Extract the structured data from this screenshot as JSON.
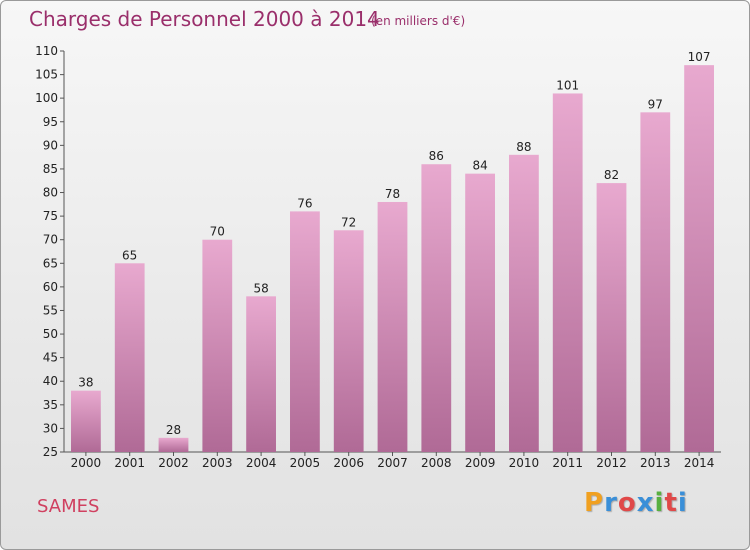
{
  "header": {
    "title": "Charges de Personnel 2000 à 2014",
    "subtitle": "(en milliers d'€)"
  },
  "commune": "SAMES",
  "logo": {
    "letters": [
      "P",
      "r",
      "o",
      "x",
      "i",
      "t",
      "i"
    ],
    "colors": [
      "#f0a020",
      "#3a8fd8",
      "#e04848",
      "#3a8fd8",
      "#58b040",
      "#e04848",
      "#3a8fd8"
    ]
  },
  "chart_data": {
    "type": "bar",
    "title": "Charges de Personnel 2000 à 2014",
    "subtitle": "(en milliers d'€)",
    "categories": [
      "2000",
      "2001",
      "2002",
      "2003",
      "2004",
      "2005",
      "2006",
      "2007",
      "2008",
      "2009",
      "2010",
      "2011",
      "2012",
      "2013",
      "2014"
    ],
    "values": [
      38,
      65,
      28,
      70,
      58,
      76,
      72,
      78,
      86,
      84,
      88,
      101,
      82,
      97,
      107
    ],
    "ylim": [
      25,
      110
    ],
    "yticks": [
      "25",
      "30",
      "35",
      "40",
      "45",
      "50",
      "55",
      "60",
      "65",
      "70",
      "75",
      "80",
      "85",
      "90",
      "95",
      "100",
      "105",
      "110"
    ],
    "grid": false,
    "bar_color_top": "#e8a9cf",
    "bar_color_bottom": "#b06a96"
  }
}
